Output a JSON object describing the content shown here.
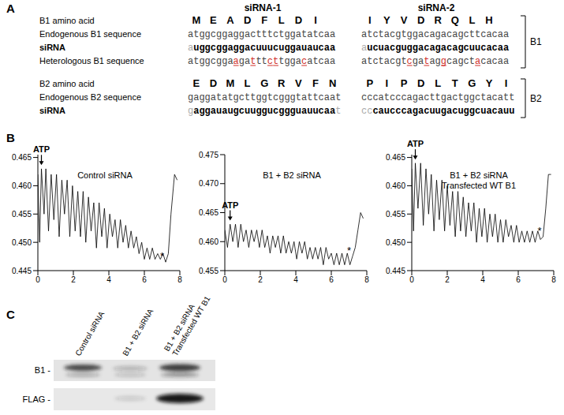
{
  "panel_labels": [
    "A",
    "B",
    "C"
  ],
  "sequence_panel": {
    "column_headers": [
      "siRNA-1",
      "siRNA-2"
    ],
    "groups": [
      {
        "name": "B1",
        "rows": [
          {
            "label": "B1 amino acid",
            "kind": "amino",
            "cells": [
              "MEADFLDI",
              "IYVDRQLH"
            ]
          },
          {
            "label": "Endogenous B1 sequence",
            "kind": "endogenous",
            "cells": [
              "atggcggaggactttctggatatcaa",
              "atctacgtggacagacagcttcacaa"
            ]
          },
          {
            "label": "siRNA",
            "kind": "sirna",
            "cells": [
              {
                "overhang_5": "a",
                "core": "uggcggaggacuuucuggauaucaa"
              },
              {
                "overhang_5": "a",
                "core": "ucuacguggacagacagcuucacaa"
              }
            ]
          },
          {
            "label": "Heterologous B1 sequence",
            "kind": "heterologous",
            "cells": [
              "atggcggaagatttcttggacatcaa",
              "atctacgtcgataggcagctacacaa"
            ]
          }
        ]
      },
      {
        "name": "B2",
        "rows": [
          {
            "label": "B2 amino acid",
            "kind": "amino",
            "cells": [
              "EDMLGRVFN",
              "PIPDLTGYI"
            ]
          },
          {
            "label": "Endogenous B2 sequence",
            "kind": "endogenous",
            "cells": [
              "gaggatatgcttggtcgggtattcaat",
              "cccatcccagacttgactggctacatt"
            ]
          },
          {
            "label": "siRNA",
            "kind": "sirna",
            "cells": [
              {
                "overhang_5": "g",
                "core": "aggauaugcuuggucggguauucaa",
                "overhang_3": "t"
              },
              {
                "overhang_5": "cc",
                "core": "caucccagacuugacuggcuacauu"
              }
            ]
          }
        ]
      }
    ]
  },
  "chart_data": [
    {
      "type": "line",
      "title": "Control siRNA",
      "color": "#000000",
      "xlim": [
        0,
        8
      ],
      "xticks": [
        0,
        2,
        4,
        6,
        8
      ],
      "ylim": [
        0.445,
        0.4655
      ],
      "yticks": [
        0.445,
        {
          "value": 0.45,
          "label": "0.450"
        },
        0.455,
        {
          "value": 0.46,
          "label": "0.460"
        },
        0.465
      ],
      "x": [
        0,
        0.1,
        0.2,
        0.35,
        0.45,
        0.6,
        0.75,
        0.9,
        1.05,
        1.2,
        1.35,
        1.5,
        1.65,
        1.8,
        1.95,
        2.1,
        2.25,
        2.4,
        2.55,
        2.7,
        2.85,
        3,
        3.15,
        3.3,
        3.45,
        3.6,
        3.75,
        3.9,
        4.05,
        4.2,
        4.35,
        4.5,
        4.65,
        4.8,
        4.95,
        5.1,
        5.25,
        5.4,
        5.55,
        5.7,
        5.85,
        6,
        6.15,
        6.3,
        6.45,
        6.6,
        6.75,
        6.9,
        7.05,
        7.2,
        7.35,
        7.5,
        7.7,
        7.85
      ],
      "values": [
        0.462,
        0.45,
        0.463,
        0.455,
        0.463,
        0.452,
        0.462,
        0.454,
        0.462,
        0.451,
        0.461,
        0.455,
        0.461,
        0.451,
        0.46,
        0.452,
        0.459,
        0.451,
        0.459,
        0.45,
        0.458,
        0.452,
        0.457,
        0.449,
        0.457,
        0.451,
        0.456,
        0.449,
        0.455,
        0.451,
        0.454,
        0.449,
        0.454,
        0.45,
        0.453,
        0.449,
        0.452,
        0.449,
        0.451,
        0.448,
        0.45,
        0.447,
        0.449,
        0.447,
        0.449,
        0.447,
        0.448,
        0.447,
        0.448,
        0.4465,
        0.448,
        0.455,
        0.462,
        0.461
      ],
      "annotations": [
        {
          "text": "ATP",
          "x": 0.2,
          "y": 0.4635
        },
        {
          "text": "*",
          "x": 7.2,
          "y": 0.4465
        }
      ]
    },
    {
      "type": "line",
      "title": "B1 + B2 siRNA",
      "color": "#000000",
      "xlim": [
        0,
        8
      ],
      "xticks": [
        0,
        2,
        4,
        6,
        8
      ],
      "ylim": [
        0.455,
        0.475
      ],
      "yticks": [
        0.455,
        {
          "value": 0.46,
          "label": "0.460"
        },
        0.465,
        {
          "value": 0.47,
          "label": "0.470"
        },
        0.475
      ],
      "x": [
        0,
        0.15,
        0.3,
        0.45,
        0.6,
        0.75,
        0.9,
        1.05,
        1.2,
        1.35,
        1.5,
        1.65,
        1.8,
        1.95,
        2.1,
        2.25,
        2.4,
        2.55,
        2.7,
        2.85,
        3,
        3.15,
        3.3,
        3.45,
        3.6,
        3.75,
        3.9,
        4.05,
        4.2,
        4.35,
        4.5,
        4.65,
        4.8,
        4.95,
        5.1,
        5.25,
        5.4,
        5.55,
        5.7,
        5.85,
        6,
        6.15,
        6.3,
        6.45,
        6.6,
        6.75,
        6.9,
        7.05,
        7.2,
        7.35,
        7.5,
        7.65,
        7.8
      ],
      "values": [
        0.462,
        0.459,
        0.463,
        0.46,
        0.463,
        0.459,
        0.463,
        0.46,
        0.462,
        0.459,
        0.462,
        0.46,
        0.462,
        0.459,
        0.462,
        0.459,
        0.461,
        0.458,
        0.461,
        0.459,
        0.461,
        0.458,
        0.461,
        0.458,
        0.46,
        0.458,
        0.46,
        0.457,
        0.46,
        0.458,
        0.46,
        0.457,
        0.459,
        0.457,
        0.459,
        0.457,
        0.459,
        0.456,
        0.459,
        0.457,
        0.458,
        0.456,
        0.458,
        0.456,
        0.458,
        0.456,
        0.458,
        0.456,
        0.4575,
        0.459,
        0.462,
        0.465,
        0.464
      ],
      "annotations": [
        {
          "text": "ATP",
          "x": 0.3,
          "y": 0.4635
        },
        {
          "text": "*",
          "x": 7.2,
          "y": 0.4575
        }
      ]
    },
    {
      "type": "line",
      "title": "B1 + B2 siRNA Transfected WT B1",
      "color": "#000000",
      "xlim": [
        0,
        8
      ],
      "xticks": [
        0,
        2,
        4,
        6,
        8
      ],
      "ylim": [
        0.445,
        0.4655
      ],
      "yticks": [
        0.445,
        {
          "value": 0.45,
          "label": "0.450"
        },
        0.455,
        {
          "value": 0.46,
          "label": "0.460"
        },
        0.465
      ],
      "x": [
        0,
        0.1,
        0.2,
        0.35,
        0.5,
        0.65,
        0.8,
        0.95,
        1.1,
        1.25,
        1.4,
        1.55,
        1.7,
        1.85,
        2,
        2.15,
        2.3,
        2.45,
        2.6,
        2.75,
        2.9,
        3.05,
        3.2,
        3.35,
        3.5,
        3.65,
        3.8,
        3.95,
        4.1,
        4.25,
        4.4,
        4.55,
        4.7,
        4.85,
        5,
        5.15,
        5.3,
        5.45,
        5.6,
        5.75,
        5.9,
        6.05,
        6.2,
        6.35,
        6.5,
        6.65,
        6.8,
        6.95,
        7.1,
        7.25,
        7.4,
        7.55,
        7.7,
        7.85
      ],
      "values": [
        0.463,
        0.452,
        0.464,
        0.456,
        0.464,
        0.453,
        0.463,
        0.455,
        0.462,
        0.452,
        0.461,
        0.454,
        0.461,
        0.452,
        0.46,
        0.453,
        0.459,
        0.451,
        0.459,
        0.452,
        0.458,
        0.451,
        0.457,
        0.452,
        0.457,
        0.45,
        0.456,
        0.451,
        0.456,
        0.45,
        0.455,
        0.451,
        0.455,
        0.45,
        0.454,
        0.45,
        0.454,
        0.451,
        0.453,
        0.45,
        0.453,
        0.45,
        0.452,
        0.45,
        0.452,
        0.45,
        0.452,
        0.45,
        0.452,
        0.4505,
        0.451,
        0.456,
        0.462,
        0.462
      ],
      "annotations": [
        {
          "text": "ATP",
          "x": 0.2,
          "y": 0.4645
        },
        {
          "text": "*",
          "x": 7.4,
          "y": 0.451
        }
      ]
    }
  ],
  "blot_panel": {
    "lanes": [
      [
        "Control siRNA"
      ],
      [
        "B1 + B2 siRNA"
      ],
      [
        "B1 + B2 siRNA",
        "Transfected WT B1"
      ]
    ],
    "rows": [
      "B1 -",
      "FLAG -"
    ]
  }
}
